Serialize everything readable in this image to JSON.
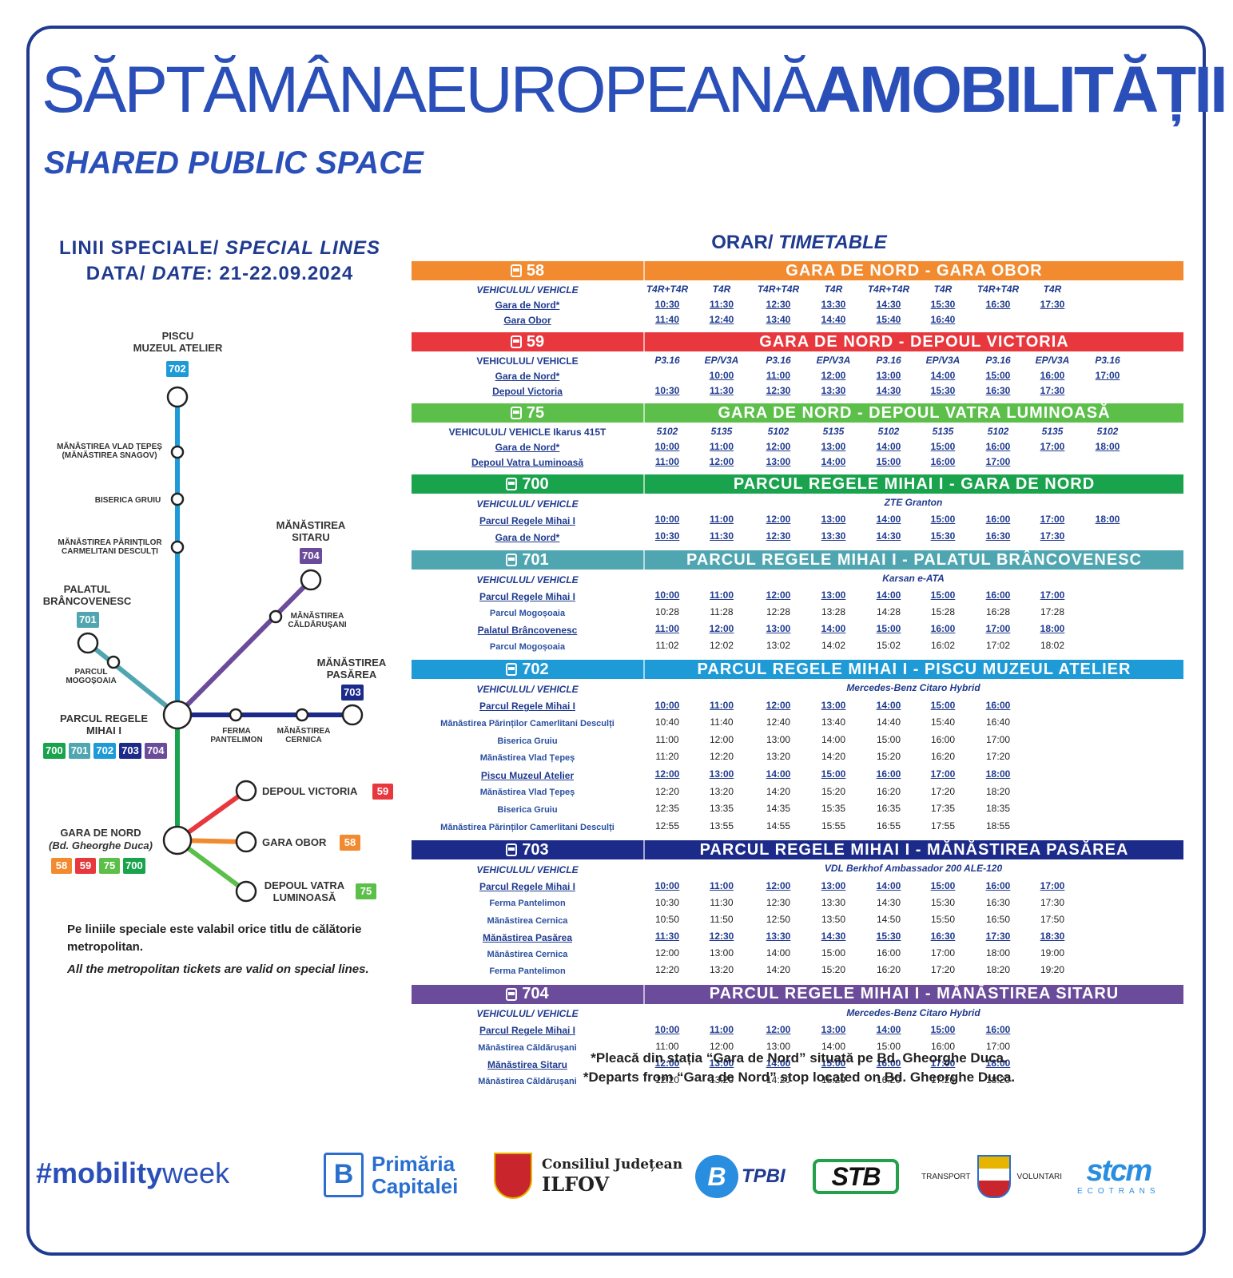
{
  "header": {
    "title_regular": "SĂPTĂMÂNAEUROPEANĂ",
    "title_bold": "AMOBILITĂȚII",
    "subtitle": "SHARED PUBLIC SPACE"
  },
  "left": {
    "lines_label_ro": "LINII SPECIALE/ ",
    "lines_label_en": "SPECIAL LINES",
    "date_label_ro": "DATA/ ",
    "date_label_en": "DATE",
    "date_value": ": 21-22.09.2024"
  },
  "timetable_title_ro": "ORAR/ ",
  "timetable_title_en": "TIMETABLE",
  "map": {
    "stations": {
      "piscu": "PISCU\nMUZEUL ATELIER",
      "vlad": "MĂNĂSTIREA VLAD ȚEPEȘ\n(MĂNĂSTIREA SNAGOV)",
      "gruiu": "BISERICA GRUIU",
      "parinti": "MĂNĂSTIREA PĂRINȚILOR\nCARMELITANI DESCULȚI",
      "palatul": "PALATUL\nBRÂNCOVENESC",
      "mogosoaia": "PARCUL\nMOGOȘOAIA",
      "sitaru": "MĂNĂSTIREA\nSITARU",
      "caldarusani": "MĂNĂSTIREA\nCĂLDĂRUȘANI",
      "pasarea": "MĂNĂSTIREA\nPASĂREA",
      "parcul": "PARCUL REGELE\nMIHAI I",
      "ferma": "FERMA\nPANTELIMON",
      "cernica": "MĂNĂSTIREA\nCERNICA",
      "depoul_victoria": "DEPOUL VICTORIA",
      "gara_obor": "GARA OBOR",
      "depoul_vatra": "DEPOUL VATRA\nLUMINOASĂ",
      "gara_nord": "GARA DE NORD",
      "gara_nord_sub": "(Bd. Gheorghe Duca)"
    },
    "colors": {
      "58": "#f28a30",
      "59": "#e8383d",
      "75": "#5cbf4a",
      "700": "#19a34d",
      "701": "#4fa6b0",
      "702": "#1e9bd7",
      "703": "#1c2a8a",
      "704": "#6b4c9a"
    }
  },
  "notes": {
    "ro": "Pe liniile speciale este valabil orice titlu de călătorie metropolitan.",
    "en": "All the metropolitan tickets are valid on special lines."
  },
  "routes": [
    {
      "num": "58",
      "color": "#f28a30",
      "name": "GARA DE NORD - GARA OBOR",
      "rows": [
        {
          "label": "VEHICULUL/ VEHICLE",
          "style": "veh",
          "cells": [
            "T4R+T4R",
            "T4R",
            "T4R+T4R",
            "T4R",
            "T4R+T4R",
            "T4R",
            "T4R+T4R",
            "T4R"
          ],
          "cellstyle": "i"
        },
        {
          "label": "Gara de Nord*",
          "style": "u",
          "cells": [
            "10:30",
            "11:30",
            "12:30",
            "13:30",
            "14:30",
            "15:30",
            "16:30",
            "17:30"
          ],
          "cellstyle": "u"
        },
        {
          "label": "Gara Obor",
          "style": "u",
          "cells": [
            "11:40",
            "12:40",
            "13:40",
            "14:40",
            "15:40",
            "16:40"
          ],
          "cellstyle": "u"
        }
      ]
    },
    {
      "num": "59",
      "color": "#e8383d",
      "name": "GARA DE NORD - DEPOUL VICTORIA",
      "rows": [
        {
          "label": "VEHICULUL/ VEHICLE",
          "style": "",
          "cells": [
            "P3.16",
            "EP/V3A",
            "P3.16",
            "EP/V3A",
            "P3.16",
            "EP/V3A",
            "P3.16",
            "EP/V3A",
            "P3.16"
          ],
          "cellstyle": "i"
        },
        {
          "label": "Gara de Nord*",
          "style": "u",
          "cells": [
            "",
            "10:00",
            "11:00",
            "12:00",
            "13:00",
            "14:00",
            "15:00",
            "16:00",
            "17:00"
          ],
          "cellstyle": "u"
        },
        {
          "label": "Depoul Victoria",
          "style": "u",
          "cells": [
            "10:30",
            "11:30",
            "12:30",
            "13:30",
            "14:30",
            "15:30",
            "16:30",
            "17:30"
          ],
          "cellstyle": "u"
        }
      ]
    },
    {
      "num": "75",
      "color": "#5cbf4a",
      "name": "GARA DE NORD - DEPOUL VATRA LUMINOASĂ",
      "rows": [
        {
          "label": "VEHICULUL/ VEHICLE  Ikarus 415T",
          "style": "",
          "cells": [
            "5102",
            "5135",
            "5102",
            "5135",
            "5102",
            "5135",
            "5102",
            "5135",
            "5102"
          ],
          "cellstyle": "i"
        },
        {
          "label": "Gara de Nord*",
          "style": "u",
          "cells": [
            "10:00",
            "11:00",
            "12:00",
            "13:00",
            "14:00",
            "15:00",
            "16:00",
            "17:00",
            "18:00"
          ],
          "cellstyle": "u"
        },
        {
          "label": "Depoul Vatra Luminoasă",
          "style": "u",
          "cells": [
            "11:00",
            "12:00",
            "13:00",
            "14:00",
            "15:00",
            "16:00",
            "17:00"
          ],
          "cellstyle": "u"
        }
      ]
    },
    {
      "num": "700",
      "color": "#19a34d",
      "name": "PARCUL REGELE MIHAI I - GARA DE NORD",
      "vehicle": "ZTE Granton",
      "rows": [
        {
          "label": "VEHICULUL/ VEHICLE",
          "style": "veh",
          "cells": [],
          "cellstyle": ""
        },
        {
          "label": "Parcul Regele Mihai I",
          "style": "u",
          "cells": [
            "10:00",
            "11:00",
            "12:00",
            "13:00",
            "14:00",
            "15:00",
            "16:00",
            "17:00",
            "18:00"
          ],
          "cellstyle": "u"
        },
        {
          "label": "Gara de Nord*",
          "style": "u",
          "cells": [
            "10:30",
            "11:30",
            "12:30",
            "13:30",
            "14:30",
            "15:30",
            "16:30",
            "17:30"
          ],
          "cellstyle": "u"
        }
      ]
    },
    {
      "num": "701",
      "color": "#4fa6b0",
      "name": "PARCUL REGELE MIHAI I - PALATUL BRÂNCOVENESC",
      "vehicle": "Karsan e-ATA",
      "rows": [
        {
          "label": "VEHICULUL/ VEHICLE",
          "style": "veh",
          "cells": [],
          "cellstyle": ""
        },
        {
          "label": "Parcul Regele Mihai I",
          "style": "u",
          "cells": [
            "10:00",
            "11:00",
            "12:00",
            "13:00",
            "14:00",
            "15:00",
            "16:00",
            "17:00"
          ],
          "cellstyle": "u"
        },
        {
          "label": "Parcul Mogoșoaia",
          "style": "sm",
          "cells": [
            "10:28",
            "11:28",
            "12:28",
            "13:28",
            "14:28",
            "15:28",
            "16:28",
            "17:28"
          ],
          "cellstyle": "plain"
        },
        {
          "label": "Palatul Brâncovenesc",
          "style": "u",
          "cells": [
            "11:00",
            "12:00",
            "13:00",
            "14:00",
            "15:00",
            "16:00",
            "17:00",
            "18:00"
          ],
          "cellstyle": "u"
        },
        {
          "label": "Parcul Mogoșoaia",
          "style": "sm",
          "cells": [
            "11:02",
            "12:02",
            "13:02",
            "14:02",
            "15:02",
            "16:02",
            "17:02",
            "18:02"
          ],
          "cellstyle": "plain"
        }
      ]
    },
    {
      "num": "702",
      "color": "#1e9bd7",
      "name": "PARCUL REGELE MIHAI I - PISCU MUZEUL ATELIER",
      "vehicle": "Mercedes-Benz Citaro Hybrid",
      "rows": [
        {
          "label": "VEHICULUL/ VEHICLE",
          "style": "veh",
          "cells": [],
          "cellstyle": ""
        },
        {
          "label": "Parcul Regele Mihai I",
          "style": "u",
          "cells": [
            "10:00",
            "11:00",
            "12:00",
            "13:00",
            "14:00",
            "15:00",
            "16:00"
          ],
          "cellstyle": "u"
        },
        {
          "label": "Mănăstirea Părinților Camerlitani Desculți",
          "style": "sm",
          "cells": [
            "10:40",
            "11:40",
            "12:40",
            "13:40",
            "14:40",
            "15:40",
            "16:40"
          ],
          "cellstyle": "plain"
        },
        {
          "label": "Biserica Gruiu",
          "style": "sm",
          "cells": [
            "11:00",
            "12:00",
            "13:00",
            "14:00",
            "15:00",
            "16:00",
            "17:00"
          ],
          "cellstyle": "plain"
        },
        {
          "label": "Mănăstirea Vlad Țepeș",
          "style": "sm",
          "cells": [
            "11:20",
            "12:20",
            "13:20",
            "14:20",
            "15:20",
            "16:20",
            "17:20"
          ],
          "cellstyle": "plain"
        },
        {
          "label": "Piscu Muzeul Atelier",
          "style": "u",
          "cells": [
            "12:00",
            "13:00",
            "14:00",
            "15:00",
            "16:00",
            "17:00",
            "18:00"
          ],
          "cellstyle": "u"
        },
        {
          "label": "Mănăstirea Vlad Țepeș",
          "style": "sm",
          "cells": [
            "12:20",
            "13:20",
            "14:20",
            "15:20",
            "16:20",
            "17:20",
            "18:20"
          ],
          "cellstyle": "plain"
        },
        {
          "label": "Biserica Gruiu",
          "style": "sm",
          "cells": [
            "12:35",
            "13:35",
            "14:35",
            "15:35",
            "16:35",
            "17:35",
            "18:35"
          ],
          "cellstyle": "plain"
        },
        {
          "label": "Mănăstirea Părinților Camerlitani Desculți",
          "style": "sm",
          "cells": [
            "12:55",
            "13:55",
            "14:55",
            "15:55",
            "16:55",
            "17:55",
            "18:55"
          ],
          "cellstyle": "plain"
        }
      ]
    },
    {
      "num": "703",
      "color": "#1c2a8a",
      "name": "PARCUL REGELE MIHAI I - MĂNĂSTIREA PASĂREA",
      "vehicle": "VDL Berkhof Ambassador 200 ALE-120",
      "rows": [
        {
          "label": "VEHICULUL/ VEHICLE",
          "style": "veh",
          "cells": [],
          "cellstyle": ""
        },
        {
          "label": "Parcul Regele Mihai I",
          "style": "u",
          "cells": [
            "10:00",
            "11:00",
            "12:00",
            "13:00",
            "14:00",
            "15:00",
            "16:00",
            "17:00"
          ],
          "cellstyle": "u"
        },
        {
          "label": "Ferma Pantelimon",
          "style": "sm",
          "cells": [
            "10:30",
            "11:30",
            "12:30",
            "13:30",
            "14:30",
            "15:30",
            "16:30",
            "17:30"
          ],
          "cellstyle": "plain"
        },
        {
          "label": "Mănăstirea Cernica",
          "style": "sm",
          "cells": [
            "10:50",
            "11:50",
            "12:50",
            "13:50",
            "14:50",
            "15:50",
            "16:50",
            "17:50"
          ],
          "cellstyle": "plain"
        },
        {
          "label": "Mănăstirea Pasărea",
          "style": "u",
          "cells": [
            "11:30",
            "12:30",
            "13:30",
            "14:30",
            "15:30",
            "16:30",
            "17:30",
            "18:30"
          ],
          "cellstyle": "u"
        },
        {
          "label": "Mănăstirea Cernica",
          "style": "sm",
          "cells": [
            "12:00",
            "13:00",
            "14:00",
            "15:00",
            "16:00",
            "17:00",
            "18:00",
            "19:00"
          ],
          "cellstyle": "plain"
        },
        {
          "label": "Ferma Pantelimon",
          "style": "sm",
          "cells": [
            "12:20",
            "13:20",
            "14:20",
            "15:20",
            "16:20",
            "17:20",
            "18:20",
            "19:20"
          ],
          "cellstyle": "plain"
        }
      ]
    },
    {
      "num": "704",
      "color": "#6b4c9a",
      "name": "PARCUL REGELE MIHAI I - MĂNĂSTIREA SITARU",
      "vehicle": "Mercedes-Benz Citaro Hybrid",
      "rows": [
        {
          "label": "VEHICULUL/ VEHICLE",
          "style": "veh",
          "cells": [],
          "cellstyle": ""
        },
        {
          "label": "Parcul Regele Mihai I",
          "style": "u",
          "cells": [
            "10:00",
            "11:00",
            "12:00",
            "13:00",
            "14:00",
            "15:00",
            "16:00"
          ],
          "cellstyle": "u"
        },
        {
          "label": "Mănăstirea Căldărușani",
          "style": "sm",
          "cells": [
            "11:00",
            "12:00",
            "13:00",
            "14:00",
            "15:00",
            "16:00",
            "17:00"
          ],
          "cellstyle": "plain"
        },
        {
          "label": "Mănăstirea Sitaru",
          "style": "u",
          "cells": [
            "12:00",
            "13:00",
            "14:00",
            "15:00",
            "16:00",
            "17:00",
            "18:00"
          ],
          "cellstyle": "u"
        },
        {
          "label": "Mănăstirea Căldărușani",
          "style": "sm",
          "cells": [
            "12:20",
            "13:20",
            "14:20",
            "15:20",
            "16:20",
            "17:20",
            "18:20"
          ],
          "cellstyle": "plain"
        }
      ]
    }
  ],
  "footnote": {
    "ro": "*Pleacă din stația “Gara de Nord” situată pe Bd. Gheorghe Duca.",
    "en": "*Departs from “Gara de Nord” stop located on Bd. Gheorghe Duca."
  },
  "footer": {
    "hashtag_a": "#mobility",
    "hashtag_b": "week",
    "primaria": "Primăria\nCapitalei",
    "cj_a": "Consiliul Județean",
    "cj_b": "ILFOV",
    "tpbi": "TPBI",
    "stb": "STB",
    "stv_a": "TRANSPORT",
    "stv_b": "VOLUNTARI",
    "stcm_a": "stcm",
    "stcm_b": "ECOTRANS"
  }
}
